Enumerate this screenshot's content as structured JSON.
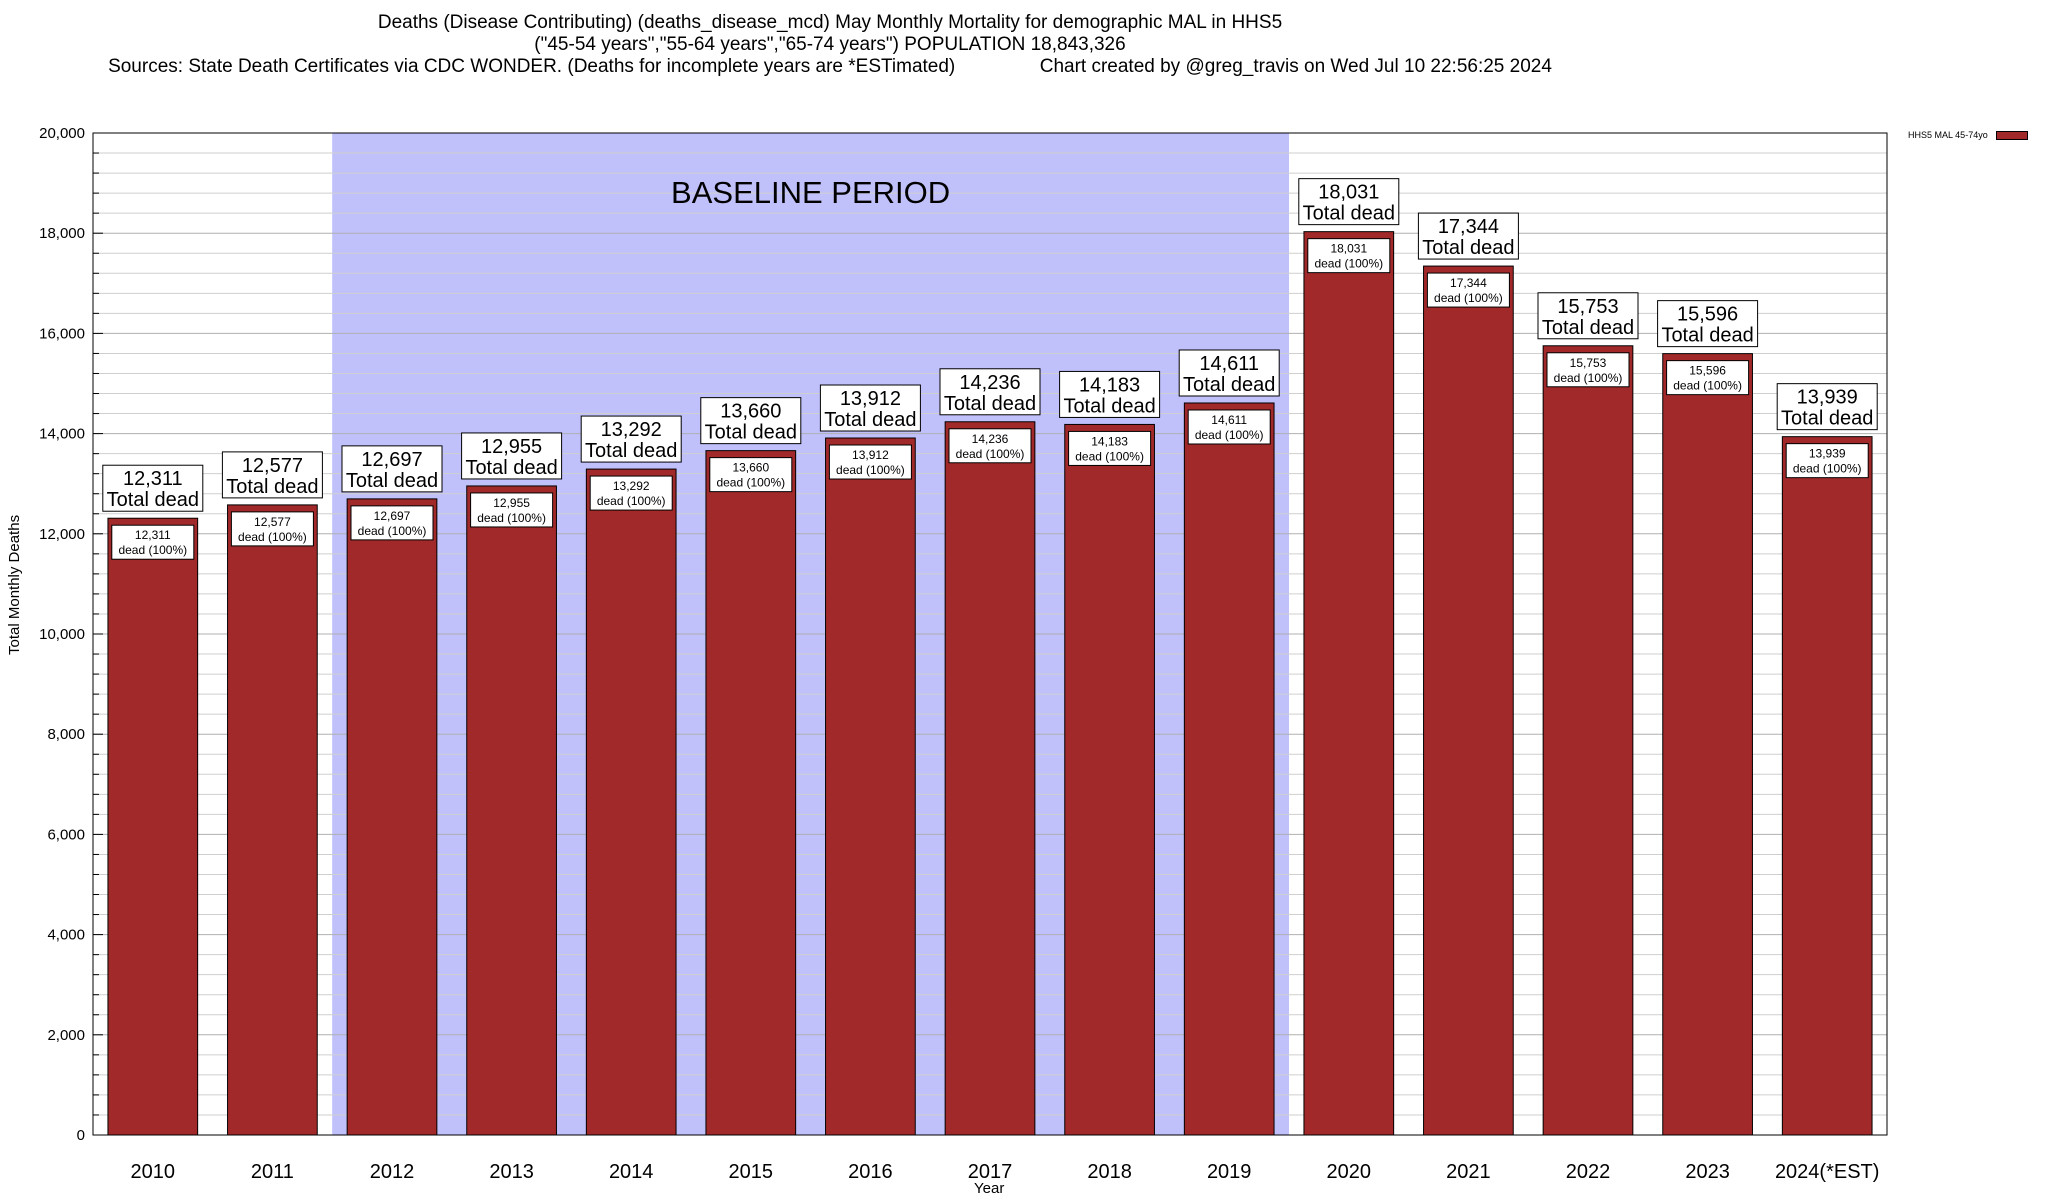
{
  "title_lines": [
    "Deaths (Disease Contributing) (deaths_disease_mcd) May Monthly Mortality for demographic MAL in HHS5",
    "(\"45-54 years\",\"55-64 years\",\"65-74 years\") POPULATION 18,843,326",
    "Sources: State Death Certificates via CDC WONDER. (Deaths for incomplete years are *ESTimated)                Chart created by @greg_travis on Wed Jul 10 22:56:25 2024"
  ],
  "chart_data": {
    "type": "bar",
    "categories": [
      "2010",
      "2011",
      "2012",
      "2013",
      "2014",
      "2015",
      "2016",
      "2017",
      "2018",
      "2019",
      "2020",
      "2021",
      "2022",
      "2023",
      "2024(*EST)"
    ],
    "series": [
      {
        "name": "HHS5 MAL 45-74yo",
        "values": [
          12311,
          12577,
          12697,
          12955,
          13292,
          13660,
          13912,
          14236,
          14183,
          14611,
          18031,
          17344,
          15753,
          15596,
          13939
        ],
        "color": "#a2292a"
      }
    ],
    "ylim": [
      0,
      20000
    ],
    "yticks": [
      "0",
      "2,000",
      "4,000",
      "6,000",
      "8,000",
      "10,000",
      "12,000",
      "14,000",
      "16,000",
      "18,000",
      "20,000"
    ],
    "xlabel": "Year",
    "ylabel": "Total Monthly Deaths",
    "grid": true,
    "legend_position": "top-right",
    "labels_top": [
      "12,311",
      "12,577",
      "12,697",
      "12,955",
      "13,292",
      "13,660",
      "13,912",
      "14,236",
      "14,183",
      "14,611",
      "18,031",
      "17,344",
      "15,753",
      "15,596",
      "13,939"
    ],
    "label_total_suffix": "Total dead",
    "labels_inner_suffix": "dead (100%)",
    "annotation": {
      "text": "BASELINE PERIOD",
      "shade_from": "2012",
      "shade_to": "2019",
      "shade_color": "#c0c0fb"
    }
  }
}
